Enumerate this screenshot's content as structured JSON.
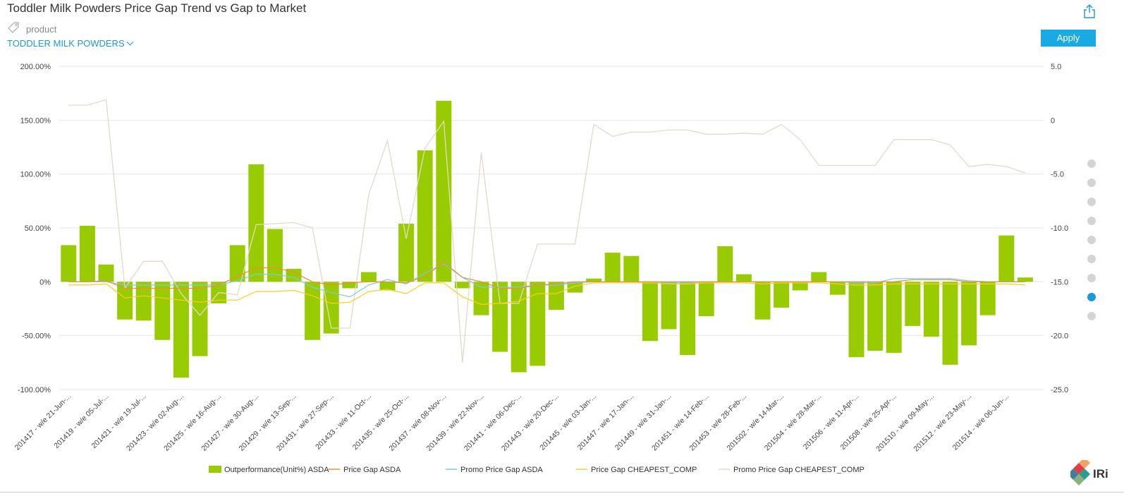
{
  "header": {
    "title": "Toddler Milk Powders Price Gap Trend vs Gap to Market",
    "filter_label": "product",
    "filter_value": "TODDLER MILK POWDERS",
    "apply_label": "Apply",
    "logo_text": "IRi"
  },
  "icons": [
    "share-icon",
    "tag-icon",
    "chevron-down-icon",
    "iri-logo"
  ],
  "pager": {
    "pages": 9,
    "active": 8
  },
  "colors": {
    "bars": "#99cc00",
    "price_gap_asda": "#f08a3c",
    "promo_price_gap_asda": "#7ec8e8",
    "price_gap_cheapest": "#ffcc22",
    "promo_price_gap_cheapest": "#e2d9cc",
    "accent": "#1a9bd7"
  },
  "chart_data": {
    "type": "bar",
    "title": "Toddler Milk Powders Price Gap Trend vs Gap to Market",
    "ylim_left": [
      -100,
      200
    ],
    "ylim_right": [
      -25,
      5
    ],
    "left_ticks": [
      "200.00%",
      "150.00%",
      "100.00%",
      "50.00%",
      "0%",
      "-50.00%",
      "-100.00%"
    ],
    "right_ticks": [
      "5.0",
      "0",
      "-5.0",
      "-10.0",
      "-15.0",
      "-20.0",
      "-25.0"
    ],
    "categories": [
      "201417",
      "201418",
      "201419",
      "201420",
      "201421",
      "201422",
      "201423",
      "201424",
      "201425",
      "201426",
      "201427",
      "201428",
      "201429",
      "201430",
      "201431",
      "201432",
      "201433",
      "201434",
      "201435",
      "201436",
      "201437",
      "201438",
      "201439",
      "201440",
      "201441",
      "201442",
      "201443",
      "201444",
      "201445",
      "201446",
      "201447",
      "201448",
      "201449",
      "201450",
      "201451",
      "201452",
      "201453",
      "201501",
      "201502",
      "201503",
      "201504",
      "201505",
      "201506",
      "201507",
      "201508",
      "201509",
      "201510",
      "201511",
      "201512",
      "201513",
      "201514",
      "201515"
    ],
    "x_tick_labels": [
      "201417 - w/e 21-Jun-...",
      "201419 - w/e 05-Jul-...",
      "201421 - w/e 19-Jul-...",
      "201423 - w/e 02-Aug-...",
      "201425 - w/e 16-Aug-...",
      "201427 - w/e 30-Aug-...",
      "201429 - w/e 13-Sep-...",
      "201431 - w/e 27-Sep-...",
      "201433 - w/e 11-Oct-...",
      "201435 - w/e 25-Oct-...",
      "201437 - w/e 08-Nov-...",
      "201439 - w/e 22-Nov-...",
      "201441 - w/e 06-Dec-...",
      "201443 - w/e 20-Dec-...",
      "201445 - w/e 03-Jan-...",
      "201447 - w/e 17-Jan-...",
      "201449 - w/e 31-Jan-...",
      "201451 - w/e 14-Feb-...",
      "201453 - w/e 28-Feb-...",
      "201502 - w/e 14-Mar-...",
      "201504 - w/e 28-Mar-...",
      "201506 - w/e 11-Apr-...",
      "201508 - w/e 25-Apr-...",
      "201510 - w/e 09-May-...",
      "201512 - w/e 23-May-...",
      "201514 - w/e 06-Jun-..."
    ],
    "series": [
      {
        "name": "Outperformance(Unit%) ASDA",
        "kind": "bar",
        "axis": "left",
        "values": [
          34,
          52,
          16,
          -35,
          -36,
          -54,
          -89,
          -69,
          -20,
          34,
          109,
          49,
          12,
          -54,
          -48,
          -6,
          9,
          -8,
          54,
          122,
          168,
          -6,
          -31,
          -65,
          -84,
          -78,
          -26,
          -10,
          3,
          27,
          24,
          -55,
          -44,
          -68,
          -32,
          33,
          7,
          -35,
          -24,
          -8,
          9,
          -12,
          -70,
          -64,
          -66,
          -41,
          -51,
          -77,
          -59,
          -31,
          43,
          4
        ]
      },
      {
        "name": "Price Gap ASDA",
        "kind": "line",
        "axis": "right",
        "values": [
          -15,
          -15,
          -14.9,
          -15.6,
          -15.6,
          -15.6,
          -15.6,
          -15.6,
          -15.3,
          -14.5,
          -13.7,
          -13.7,
          -14.1,
          -15,
          -15.3,
          -15.1,
          -15,
          -15,
          -15.1,
          -14.5,
          -13.2,
          -14.6,
          -15,
          -15.6,
          -15.6,
          -15.3,
          -15.2,
          -15,
          -15,
          -15,
          -15,
          -15,
          -15,
          -15,
          -15,
          -15,
          -15,
          -15,
          -15,
          -15,
          -15,
          -15,
          -15,
          -15,
          -15,
          -14.8,
          -14.8,
          -14.8,
          -15,
          -15,
          -15,
          -15
        ]
      },
      {
        "name": "Promo Price Gap ASDA",
        "kind": "line",
        "axis": "right",
        "values": [
          -15,
          -15,
          -15,
          -15.3,
          -15.3,
          -15.3,
          -15.3,
          -15.3,
          -15.3,
          -14.9,
          -14.3,
          -14.3,
          -14.6,
          -15.5,
          -16,
          -16.4,
          -15.3,
          -14.8,
          -15.2,
          -14.2,
          -13.3,
          -14.6,
          -15.5,
          -15.5,
          -15.5,
          -15.3,
          -15.3,
          -15.1,
          -15,
          -15,
          -15,
          -15,
          -15.1,
          -15.1,
          -15,
          -15,
          -15,
          -15,
          -15,
          -15,
          -15,
          -15,
          -15.1,
          -15.1,
          -14.7,
          -14.7,
          -14.7,
          -14.7,
          -14.9,
          -15,
          -15,
          -15
        ]
      },
      {
        "name": "Price Gap CHEAPEST_COMP",
        "kind": "line",
        "axis": "right",
        "values": [
          -15.3,
          -15.3,
          -15.2,
          -16.5,
          -16.3,
          -16.5,
          -16.7,
          -16.9,
          -16.7,
          -16.7,
          -15.9,
          -15.9,
          -15.8,
          -16.3,
          -17,
          -16.9,
          -15.9,
          -15.7,
          -16.1,
          -15.1,
          -15.1,
          -16.4,
          -17.1,
          -17,
          -16.8,
          -16.1,
          -16.1,
          -15.4,
          -15.1,
          -15.1,
          -15.1,
          -15.1,
          -15.2,
          -15.2,
          -15.1,
          -15.1,
          -15.1,
          -15.2,
          -15.1,
          -15.1,
          -15.1,
          -15.2,
          -15.3,
          -15.3,
          -15.2,
          -15.2,
          -15.2,
          -15.2,
          -15.2,
          -15.2,
          -15.2,
          -15.3
        ]
      },
      {
        "name": "Promo Price Gap CHEAPEST_COMP",
        "kind": "line",
        "axis": "right",
        "values": [
          1.4,
          1.4,
          1.9,
          -15.6,
          -13.1,
          -13.1,
          -16.1,
          -18.1,
          -16,
          -16.2,
          -9.7,
          -9.6,
          -9.5,
          -10,
          -19.3,
          -19.3,
          -6.9,
          -1.9,
          -11,
          -2.6,
          -0.1,
          -22.5,
          -3,
          -17,
          -17,
          -11.5,
          -11.5,
          -11.5,
          -0.4,
          -1.5,
          -1.1,
          -1.1,
          -0.9,
          -0.9,
          -1.3,
          -1.3,
          -1.2,
          -1.3,
          -0.4,
          -1.8,
          -4.2,
          -4.2,
          -4.2,
          -4.2,
          -1.8,
          -1.8,
          -1.8,
          -2.3,
          -4.3,
          -4.1,
          -4.3,
          -4.9
        ]
      }
    ],
    "legend": "bottom",
    "grid": true
  }
}
